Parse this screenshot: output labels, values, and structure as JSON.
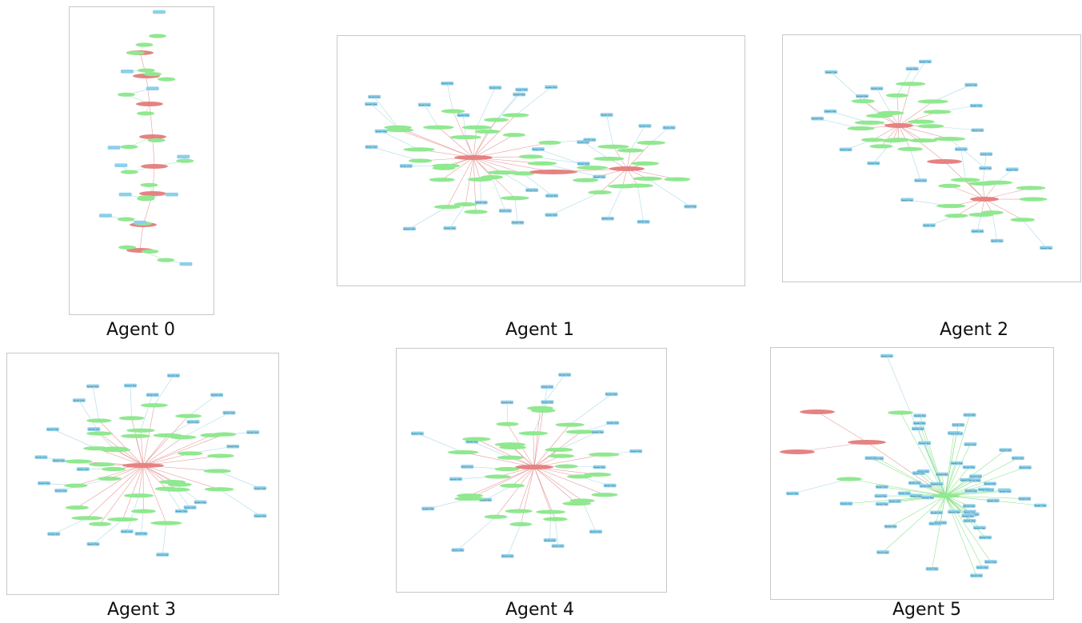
{
  "agents": [
    {
      "caption": "Agent 0",
      "tiny_label": "Episode 1 Step",
      "color_core": "#e58282",
      "color_mid": "#90e890",
      "color_leaf": "#8cd0ea"
    },
    {
      "caption": "Agent 1",
      "tiny_label": "Episode 1 Step",
      "color_core": "#e58282",
      "color_mid": "#90e890",
      "color_leaf": "#8cd0ea"
    },
    {
      "caption": "Agent 2",
      "tiny_label": "Episode 1 Step",
      "color_core": "#e58282",
      "color_mid": "#90e890",
      "color_leaf": "#8cd0ea"
    },
    {
      "caption": "Agent 3",
      "tiny_label": "Episode 1 Step",
      "color_core": "#e58282",
      "color_mid": "#90e890",
      "color_leaf": "#8cd0ea"
    },
    {
      "caption": "Agent 4",
      "tiny_label": "Episode 1 Step",
      "color_core": "#e58282",
      "color_mid": "#90e890",
      "color_leaf": "#8cd0ea"
    },
    {
      "caption": "Agent 5",
      "tiny_label": "Episode 1 Step",
      "color_core": "#e58282",
      "color_mid": "#90e890",
      "color_leaf": "#8cd0ea"
    }
  ]
}
